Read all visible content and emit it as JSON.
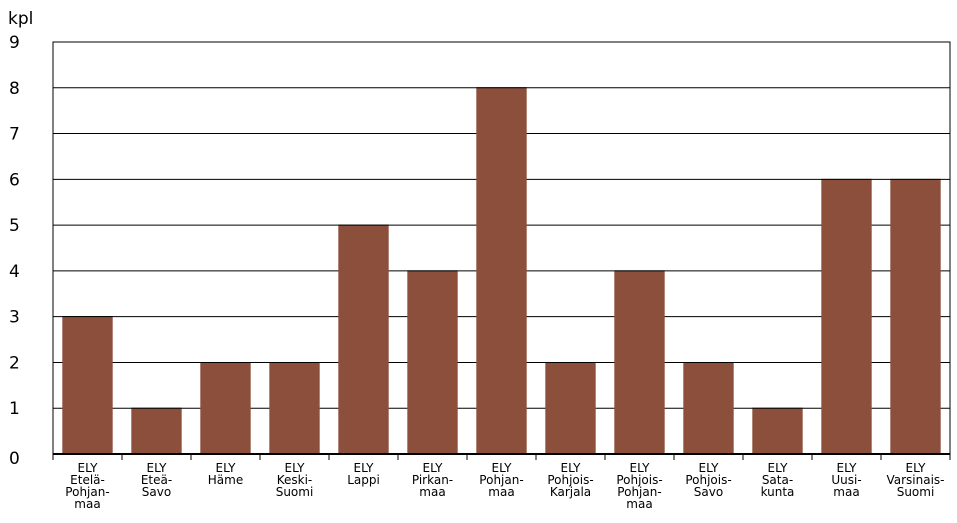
{
  "chart_data": {
    "type": "bar",
    "ylabel": "kpl",
    "ylim": [
      0,
      9
    ],
    "yticks": [
      "0",
      "1",
      "2",
      "3",
      "4",
      "5",
      "6",
      "7",
      "8",
      "9"
    ],
    "grid": true,
    "bar_color": "#8B4F3B",
    "categories": [
      "ELY Etelä-Pohjan-maa",
      "ELY Eteä-Savo",
      "ELY Häme",
      "ELY Keski-Suomi",
      "ELY Lappi",
      "ELY Pirkan-maa",
      "ELY Pohjan-maa",
      "ELY Pohjois-Karjala",
      "ELY Pohjois-Pohjan-maa",
      "ELY Pohjois-Savo",
      "ELY Sata-kunta",
      "ELY Uusi-maa",
      "ELY Varsinais-Suomi"
    ],
    "category_lines": [
      [
        "ELY",
        "Etelä-",
        "Pohjan-",
        "maa"
      ],
      [
        "ELY",
        "Eteä-",
        "Savo"
      ],
      [
        "ELY",
        "Häme"
      ],
      [
        "ELY",
        "Keski-",
        "Suomi"
      ],
      [
        "ELY",
        "Lappi"
      ],
      [
        "ELY",
        "Pirkan-",
        "maa"
      ],
      [
        "ELY",
        "Pohjan-",
        "maa"
      ],
      [
        "ELY",
        "Pohjois-",
        "Karjala"
      ],
      [
        "ELY",
        "Pohjois-",
        "Pohjan-",
        "maa"
      ],
      [
        "ELY",
        "Pohjois-",
        "Savo"
      ],
      [
        "ELY",
        "Sata-",
        "kunta"
      ],
      [
        "ELY",
        "Uusi-",
        "maa"
      ],
      [
        "ELY",
        "Varsinais-",
        "Suomi"
      ]
    ],
    "values": [
      3,
      1,
      2,
      2,
      5,
      4,
      8,
      2,
      4,
      2,
      1,
      6,
      6
    ]
  }
}
